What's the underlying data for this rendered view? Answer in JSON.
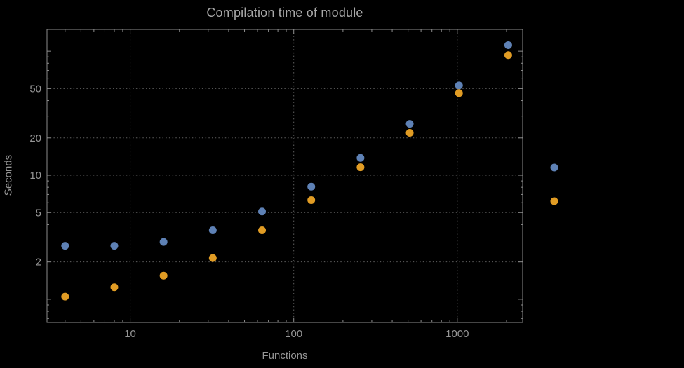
{
  "chart_data": {
    "type": "scatter",
    "title": "Compilation time of module",
    "xlabel": "Functions",
    "ylabel": "Seconds",
    "x_scale": "log",
    "y_scale": "log",
    "grid": "dotted",
    "x": [
      4,
      8,
      16,
      32,
      64,
      128,
      256,
      512,
      1024,
      2048
    ],
    "series": [
      {
        "name": "series-1",
        "color": "#5E81B5",
        "values": [
          2.7,
          2.7,
          2.9,
          3.6,
          5.1,
          8.1,
          13.8,
          26,
          53,
          112
        ]
      },
      {
        "name": "series-2",
        "color": "#E19C24",
        "values": [
          1.05,
          1.25,
          1.55,
          2.15,
          3.6,
          6.3,
          11.6,
          22,
          46,
          93
        ]
      }
    ],
    "x_ticks": [
      10,
      100,
      1000
    ],
    "x_tick_labels": [
      "10",
      "100",
      "1000"
    ],
    "y_ticks": [
      2,
      5,
      10,
      20,
      50
    ],
    "y_tick_labels": [
      "2",
      "5",
      "10",
      "20",
      "50"
    ],
    "xlim": [
      3.1,
      2510
    ],
    "ylim": [
      0.65,
      150
    ],
    "frame_color": "#8c8c8c",
    "grid_color": "#5f5f5f",
    "background_color": "#000000",
    "legend": {
      "markers": [
        {
          "color": "#5E81B5"
        },
        {
          "color": "#E19C24"
        }
      ]
    }
  }
}
